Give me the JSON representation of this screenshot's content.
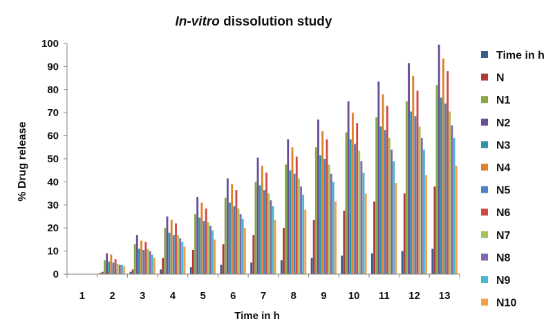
{
  "chart_data": {
    "type": "bar",
    "title_prefix": "In-vitro",
    "title_suffix": " dissolution study",
    "xlabel": "Time in h",
    "ylabel": "% Drug release",
    "ylim": [
      0,
      100
    ],
    "yticks": [
      0,
      10,
      20,
      30,
      40,
      50,
      60,
      70,
      80,
      90,
      100
    ],
    "categories": [
      "1",
      "2",
      "3",
      "4",
      "5",
      "6",
      "7",
      "8",
      "9",
      "10",
      "11",
      "12",
      "13"
    ],
    "legend_position": "right",
    "grid": false,
    "series": [
      {
        "name": "Time in h",
        "color": "#385D8A",
        "values": [
          0,
          0.5,
          1,
          2,
          3,
          4,
          5,
          6,
          7,
          8,
          9,
          10,
          11
        ]
      },
      {
        "name": "N",
        "color": "#B03A37",
        "values": [
          0,
          1,
          2,
          7,
          10.5,
          13,
          17,
          20,
          23.5,
          27.5,
          31.5,
          35,
          38
        ]
      },
      {
        "name": "N1",
        "color": "#86A845",
        "values": [
          0,
          6,
          13,
          20,
          26,
          33,
          40,
          47.5,
          55,
          61.5,
          68,
          75,
          82
        ]
      },
      {
        "name": "N2",
        "color": "#6A4E99",
        "values": [
          0,
          9,
          17,
          25,
          33.5,
          41.5,
          50.5,
          58.5,
          67,
          75,
          83.5,
          91.5,
          99.5
        ]
      },
      {
        "name": "N3",
        "color": "#2F95A8",
        "values": [
          0,
          5.5,
          11,
          18,
          24.5,
          31,
          38.5,
          45,
          51.5,
          58.5,
          64,
          70.5,
          76.5
        ]
      },
      {
        "name": "N4",
        "color": "#E0822A",
        "values": [
          0,
          8.5,
          14.5,
          23.5,
          31,
          39,
          47,
          55,
          62,
          70,
          78,
          86,
          93.5
        ]
      },
      {
        "name": "N5",
        "color": "#4A82C4",
        "values": [
          0,
          5,
          10.5,
          17,
          23,
          29.5,
          36.5,
          43.5,
          50,
          56.5,
          62.5,
          68.5,
          74
        ]
      },
      {
        "name": "N6",
        "color": "#D04A45",
        "values": [
          0,
          6.5,
          14,
          22,
          28.5,
          36.5,
          44,
          51,
          58.5,
          65.5,
          73,
          79.5,
          88
        ]
      },
      {
        "name": "N7",
        "color": "#A4C55A",
        "values": [
          0,
          4.5,
          11,
          17,
          22.5,
          28.5,
          35,
          41.5,
          47.5,
          53.5,
          59,
          64,
          70.5
        ]
      },
      {
        "name": "N8",
        "color": "#8266B3",
        "values": [
          0,
          4,
          10,
          15.5,
          21,
          26,
          32,
          38,
          43.5,
          49,
          54,
          59,
          64.5
        ]
      },
      {
        "name": "N9",
        "color": "#47B8CF",
        "values": [
          0,
          4,
          8.5,
          14,
          19,
          24,
          29.5,
          34.5,
          40,
          44,
          49,
          54,
          59
        ]
      },
      {
        "name": "N10",
        "color": "#F3A049",
        "values": [
          0,
          3.5,
          7,
          12,
          15,
          20,
          23.5,
          28,
          31.5,
          35,
          39.5,
          43,
          47
        ]
      }
    ]
  }
}
